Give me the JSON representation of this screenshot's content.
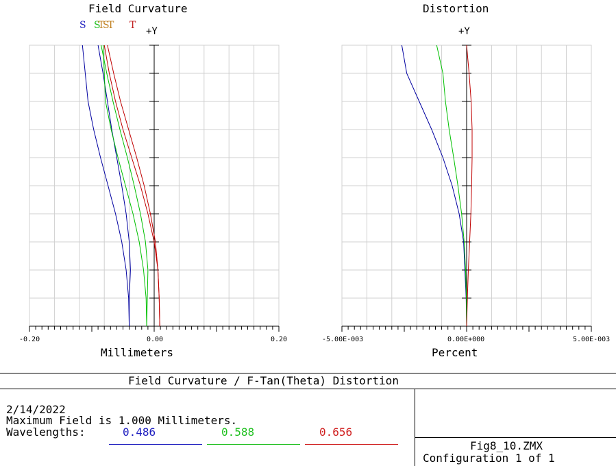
{
  "chart_data": [
    {
      "type": "line",
      "title": "Field Curvature",
      "xlabel": "Millimeters",
      "axis_label": "+Y",
      "xlim": [
        -0.2,
        0.2
      ],
      "ylim": [
        0,
        1
      ],
      "x_ticks": [
        "-0.20",
        "0.00",
        "0.20"
      ],
      "grid": true,
      "legend_labels": [
        {
          "text": "S",
          "color": "#2020c0"
        },
        {
          "text": "S",
          "color": "#20c020"
        },
        {
          "text": "T",
          "color": "#c08020"
        },
        {
          "text": "S",
          "color": "#c08020"
        },
        {
          "text": "T",
          "color": "#c08020"
        },
        {
          "text": "T",
          "color": "#c02020"
        }
      ],
      "series": [
        {
          "color": "#0000a0",
          "x": [
            -0.04,
            -0.041,
            -0.045,
            -0.052,
            -0.062,
            -0.074,
            -0.086,
            -0.097,
            -0.106,
            -0.115
          ],
          "y": [
            0,
            0.1,
            0.2,
            0.3,
            0.4,
            0.5,
            0.6,
            0.7,
            0.8,
            1.0
          ]
        },
        {
          "color": "#0000a0",
          "x": [
            -0.04,
            -0.04,
            -0.038,
            -0.04,
            -0.045,
            -0.052,
            -0.06,
            -0.068,
            -0.075,
            -0.082,
            -0.09
          ],
          "y": [
            0,
            0.1,
            0.2,
            0.3,
            0.4,
            0.5,
            0.6,
            0.7,
            0.8,
            0.9,
            1.0
          ]
        },
        {
          "color": "#00c000",
          "x": [
            -0.012,
            -0.013,
            -0.017,
            -0.024,
            -0.034,
            -0.046,
            -0.058,
            -0.069,
            -0.078,
            -0.082
          ],
          "y": [
            0,
            0.1,
            0.2,
            0.3,
            0.4,
            0.5,
            0.6,
            0.7,
            0.8,
            1.0
          ]
        },
        {
          "color": "#00c000",
          "x": [
            -0.012,
            -0.011,
            -0.01,
            -0.014,
            -0.022,
            -0.032,
            -0.043,
            -0.055,
            -0.066,
            -0.076,
            -0.085
          ],
          "y": [
            0,
            0.1,
            0.2,
            0.3,
            0.4,
            0.5,
            0.6,
            0.7,
            0.8,
            0.9,
            1.0
          ]
        },
        {
          "color": "#c00000",
          "x": [
            0.009,
            0.008,
            0.006,
            0.002,
            -0.006,
            -0.016,
            -0.028,
            -0.041,
            -0.054,
            -0.065,
            -0.075
          ],
          "y": [
            0,
            0.1,
            0.2,
            0.3,
            0.4,
            0.5,
            0.6,
            0.7,
            0.8,
            0.9,
            1.0
          ]
        },
        {
          "color": "#c00000",
          "x": [
            0.009,
            0.008,
            0.006,
            0.0,
            -0.01,
            -0.022,
            -0.036,
            -0.05,
            -0.062,
            -0.072,
            -0.08
          ],
          "y": [
            0,
            0.1,
            0.2,
            0.3,
            0.4,
            0.5,
            0.6,
            0.7,
            0.8,
            0.9,
            1.0
          ]
        }
      ]
    },
    {
      "type": "line",
      "title": "Distortion",
      "xlabel": "Percent",
      "axis_label": "+Y",
      "xlim": [
        -0.005,
        0.005
      ],
      "ylim": [
        0,
        1
      ],
      "x_ticks": [
        "-5.00E-003",
        "0.00E+000",
        "5.00E-003"
      ],
      "grid": true,
      "series": [
        {
          "color": "#0000a0",
          "x": [
            0,
            -2e-05,
            -0.00012,
            -0.0003,
            -0.00058,
            -0.00095,
            -0.0014,
            -0.0019,
            -0.0024,
            -0.0026
          ],
          "y": [
            0,
            0.1,
            0.3,
            0.4,
            0.5,
            0.6,
            0.7,
            0.8,
            0.9,
            1.0
          ]
        },
        {
          "color": "#00c000",
          "x": [
            0,
            -1e-05,
            -4e-05,
            -0.0001,
            -0.0002,
            -0.00035,
            -0.00052,
            -0.0007,
            -0.00085,
            -0.00095,
            -0.0012
          ],
          "y": [
            0,
            0.1,
            0.2,
            0.3,
            0.4,
            0.5,
            0.6,
            0.7,
            0.8,
            0.9,
            1.0
          ]
        },
        {
          "color": "#c00000",
          "x": [
            0,
            3e-05,
            7e-05,
            0.00012,
            0.00017,
            0.0002,
            0.00022,
            0.00022,
            0.00018,
            0.0001,
            0.0
          ],
          "y": [
            0,
            0.1,
            0.2,
            0.3,
            0.4,
            0.5,
            0.6,
            0.7,
            0.8,
            0.9,
            1.0
          ]
        }
      ]
    }
  ],
  "info": {
    "main_title": "Field Curvature / F-Tan(Theta) Distortion",
    "date": "2/14/2022",
    "max_field": "Maximum Field is 1.000 Millimeters.",
    "wavelengths_label": "Wavelengths:",
    "wavelengths": [
      {
        "value": "0.486",
        "color": "#2020c0"
      },
      {
        "value": "0.588",
        "color": "#20c020"
      },
      {
        "value": "0.656",
        "color": "#d02020"
      }
    ],
    "file_name": "Fig8_10.ZMX",
    "configuration": "Configuration 1 of 1"
  }
}
